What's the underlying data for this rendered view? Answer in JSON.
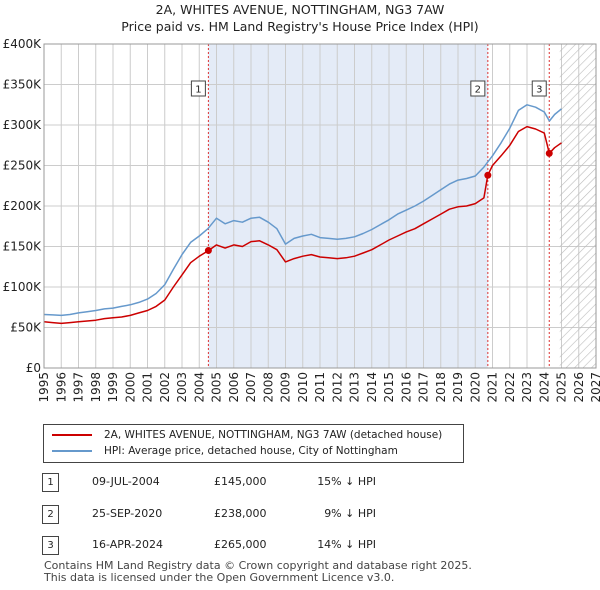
{
  "title": {
    "line1": "2A, WHITES AVENUE, NOTTINGHAM, NG3 7AW",
    "line2": "Price paid vs. HM Land Registry's House Price Index (HPI)"
  },
  "colors": {
    "price_line": "#cc0000",
    "hpi_line": "#6699cc",
    "shade": "#e4ebf7",
    "grid": "#cccccc",
    "marker_vline": "#dd3333"
  },
  "chart_data": {
    "type": "line",
    "xlim": [
      1995,
      2027
    ],
    "ylim": [
      0,
      400000
    ],
    "x_ticks": [
      "1995",
      "1996",
      "1997",
      "1998",
      "1999",
      "2000",
      "2001",
      "2002",
      "2003",
      "2004",
      "2005",
      "2006",
      "2007",
      "2008",
      "2009",
      "2010",
      "2011",
      "2012",
      "2013",
      "2014",
      "2015",
      "2016",
      "2017",
      "2018",
      "2019",
      "2020",
      "2021",
      "2022",
      "2023",
      "2024",
      "2025",
      "2026",
      "2027"
    ],
    "y_ticks": [
      {
        "value": 0,
        "label": "£0"
      },
      {
        "value": 50000,
        "label": "£50K"
      },
      {
        "value": 100000,
        "label": "£100K"
      },
      {
        "value": 150000,
        "label": "£150K"
      },
      {
        "value": 200000,
        "label": "£200K"
      },
      {
        "value": 250000,
        "label": "£250K"
      },
      {
        "value": 300000,
        "label": "£300K"
      },
      {
        "value": 350000,
        "label": "£350K"
      },
      {
        "value": 400000,
        "label": "£400K"
      }
    ],
    "hatch_from": 2024.9,
    "series": [
      {
        "name": "2A, WHITES AVENUE, NOTTINGHAM, NG3 7AW (detached house)",
        "color": "#cc0000",
        "points": [
          [
            1995.0,
            57000
          ],
          [
            1995.5,
            56000
          ],
          [
            1996.0,
            55000
          ],
          [
            1996.5,
            56000
          ],
          [
            1997.0,
            57000
          ],
          [
            1997.5,
            58000
          ],
          [
            1998.0,
            59000
          ],
          [
            1998.5,
            61000
          ],
          [
            1999.0,
            62000
          ],
          [
            1999.5,
            63000
          ],
          [
            2000.0,
            65000
          ],
          [
            2000.5,
            68000
          ],
          [
            2001.0,
            71000
          ],
          [
            2001.5,
            76000
          ],
          [
            2002.0,
            84000
          ],
          [
            2002.5,
            100000
          ],
          [
            2003.0,
            115000
          ],
          [
            2003.5,
            130000
          ],
          [
            2004.0,
            138000
          ],
          [
            2004.53,
            145000
          ],
          [
            2005.0,
            152000
          ],
          [
            2005.5,
            148000
          ],
          [
            2006.0,
            152000
          ],
          [
            2006.5,
            150000
          ],
          [
            2007.0,
            156000
          ],
          [
            2007.5,
            157000
          ],
          [
            2008.0,
            152000
          ],
          [
            2008.5,
            146000
          ],
          [
            2009.0,
            131000
          ],
          [
            2009.5,
            135000
          ],
          [
            2010.0,
            138000
          ],
          [
            2010.5,
            140000
          ],
          [
            2011.0,
            137000
          ],
          [
            2011.5,
            136000
          ],
          [
            2012.0,
            135000
          ],
          [
            2012.5,
            136000
          ],
          [
            2013.0,
            138000
          ],
          [
            2013.5,
            142000
          ],
          [
            2014.0,
            146000
          ],
          [
            2014.5,
            152000
          ],
          [
            2015.0,
            158000
          ],
          [
            2015.5,
            163000
          ],
          [
            2016.0,
            168000
          ],
          [
            2016.5,
            172000
          ],
          [
            2017.0,
            178000
          ],
          [
            2017.5,
            184000
          ],
          [
            2018.0,
            190000
          ],
          [
            2018.5,
            196000
          ],
          [
            2019.0,
            199000
          ],
          [
            2019.5,
            200000
          ],
          [
            2020.0,
            203000
          ],
          [
            2020.5,
            210000
          ],
          [
            2020.73,
            238000
          ],
          [
            2021.0,
            250000
          ],
          [
            2021.5,
            262000
          ],
          [
            2022.0,
            275000
          ],
          [
            2022.5,
            292000
          ],
          [
            2023.0,
            298000
          ],
          [
            2023.5,
            295000
          ],
          [
            2024.0,
            290000
          ],
          [
            2024.29,
            265000
          ],
          [
            2024.6,
            272000
          ],
          [
            2025.0,
            278000
          ]
        ]
      },
      {
        "name": "HPI: Average price, detached house, City of Nottingham",
        "color": "#6699cc",
        "points": [
          [
            1995.0,
            66000
          ],
          [
            1995.5,
            65500
          ],
          [
            1996.0,
            65000
          ],
          [
            1996.5,
            66000
          ],
          [
            1997.0,
            68000
          ],
          [
            1997.5,
            69500
          ],
          [
            1998.0,
            71000
          ],
          [
            1998.5,
            73000
          ],
          [
            1999.0,
            74000
          ],
          [
            1999.5,
            76000
          ],
          [
            2000.0,
            78000
          ],
          [
            2000.5,
            81000
          ],
          [
            2001.0,
            85000
          ],
          [
            2001.5,
            92000
          ],
          [
            2002.0,
            103000
          ],
          [
            2002.5,
            122000
          ],
          [
            2003.0,
            140000
          ],
          [
            2003.5,
            155000
          ],
          [
            2004.0,
            163000
          ],
          [
            2004.5,
            172000
          ],
          [
            2005.0,
            185000
          ],
          [
            2005.5,
            178000
          ],
          [
            2006.0,
            182000
          ],
          [
            2006.5,
            180000
          ],
          [
            2007.0,
            185000
          ],
          [
            2007.5,
            186000
          ],
          [
            2008.0,
            180000
          ],
          [
            2008.5,
            172000
          ],
          [
            2009.0,
            153000
          ],
          [
            2009.5,
            160000
          ],
          [
            2010.0,
            163000
          ],
          [
            2010.5,
            165000
          ],
          [
            2011.0,
            161000
          ],
          [
            2011.5,
            160000
          ],
          [
            2012.0,
            159000
          ],
          [
            2012.5,
            160000
          ],
          [
            2013.0,
            162000
          ],
          [
            2013.5,
            166000
          ],
          [
            2014.0,
            171000
          ],
          [
            2014.5,
            177000
          ],
          [
            2015.0,
            183000
          ],
          [
            2015.5,
            190000
          ],
          [
            2016.0,
            195000
          ],
          [
            2016.5,
            200000
          ],
          [
            2017.0,
            206000
          ],
          [
            2017.5,
            213000
          ],
          [
            2018.0,
            220000
          ],
          [
            2018.5,
            227000
          ],
          [
            2019.0,
            232000
          ],
          [
            2019.5,
            234000
          ],
          [
            2020.0,
            237000
          ],
          [
            2020.5,
            248000
          ],
          [
            2021.0,
            262000
          ],
          [
            2021.5,
            278000
          ],
          [
            2022.0,
            296000
          ],
          [
            2022.5,
            318000
          ],
          [
            2023.0,
            325000
          ],
          [
            2023.5,
            322000
          ],
          [
            2024.0,
            316000
          ],
          [
            2024.3,
            305000
          ],
          [
            2024.6,
            313000
          ],
          [
            2025.0,
            320000
          ]
        ]
      }
    ],
    "markers": [
      {
        "id": "1",
        "date": 2004.53,
        "value": 145000
      },
      {
        "id": "2",
        "date": 2020.73,
        "value": 238000
      },
      {
        "id": "3",
        "date": 2024.29,
        "value": 265000
      }
    ],
    "shade_range": [
      2004.53,
      2020.73
    ]
  },
  "legend": {
    "items": [
      {
        "label": "2A, WHITES AVENUE, NOTTINGHAM, NG3 7AW (detached house)",
        "color": "#cc0000"
      },
      {
        "label": "HPI: Average price, detached house, City of Nottingham",
        "color": "#6699cc"
      }
    ]
  },
  "sales": [
    {
      "id": "1",
      "date": "09-JUL-2004",
      "price": "£145,000",
      "hpi": "15% ↓ HPI"
    },
    {
      "id": "2",
      "date": "25-SEP-2020",
      "price": "£238,000",
      "hpi": "9% ↓ HPI"
    },
    {
      "id": "3",
      "date": "16-APR-2024",
      "price": "£265,000",
      "hpi": "14% ↓ HPI"
    }
  ],
  "footer": {
    "line1": "Contains HM Land Registry data © Crown copyright and database right 2025.",
    "line2": "This data is licensed under the Open Government Licence v3.0."
  }
}
